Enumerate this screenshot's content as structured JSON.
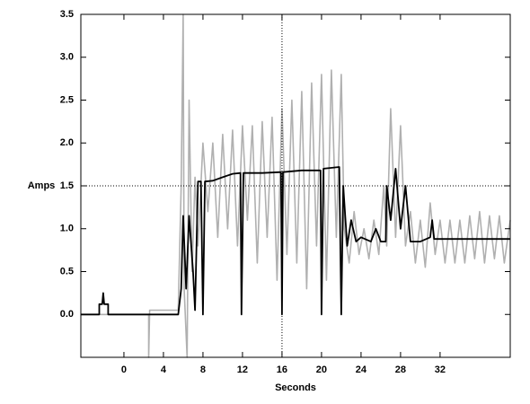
{
  "chart_data": {
    "type": "line",
    "xlabel": "Seconds",
    "ylabel": "Amps",
    "xlim": [
      -4.36,
      39.1
    ],
    "ylim": [
      -0.5,
      3.5
    ],
    "xticks": [
      0,
      4,
      8,
      12,
      16,
      20,
      24,
      28,
      32
    ],
    "yticks": [
      {
        "value": 0,
        "label": "0.0"
      },
      0.5,
      {
        "value": 1,
        "label": "1.0"
      },
      1.5,
      {
        "value": 2,
        "label": "2.0"
      },
      2.5,
      {
        "value": 3,
        "label": "3.0"
      },
      3.5
    ],
    "crosshair": {
      "x": 16,
      "y": 1.5
    },
    "series": [
      {
        "color": "#b0b0b0",
        "x": [
          -4.36,
          2.5,
          2.5,
          2.6,
          5.5,
          5.8,
          6.0,
          6.1,
          6.4,
          6.6,
          6.9,
          7.2,
          7.5,
          8,
          8.5,
          9,
          9.5,
          10,
          10.5,
          11,
          11.5,
          12,
          12.5,
          13,
          13.5,
          14,
          14.5,
          15,
          15.5,
          16,
          16.5,
          17,
          17.5,
          18,
          18.5,
          19,
          19.5,
          20,
          20.5,
          21,
          21.5,
          22,
          22.3,
          22.8,
          23.3,
          23.8,
          24.3,
          24.8,
          25.3,
          25.8,
          26.3,
          26.6,
          27,
          27.5,
          28,
          28.5,
          29,
          29.5,
          30,
          30.5,
          31,
          31.5,
          32,
          32.5,
          33,
          33.5,
          34,
          34.5,
          35,
          35.5,
          36,
          36.5,
          37,
          37.5,
          38,
          38.5,
          39.1
        ],
        "values": [
          0,
          0,
          -0.5,
          0.05,
          0.05,
          1.5,
          3.5,
          0.3,
          -0.5,
          2.5,
          0.5,
          1.6,
          0.8,
          2.0,
          1.2,
          2.0,
          0.9,
          2.1,
          1.0,
          2.15,
          0.8,
          2.2,
          1.1,
          2.2,
          0.6,
          2.25,
          0.9,
          2.3,
          0.4,
          2.4,
          0.7,
          2.5,
          0.6,
          2.6,
          0.3,
          2.7,
          0.8,
          2.8,
          0.4,
          2.85,
          0.9,
          2.8,
          1.0,
          0.6,
          1.2,
          0.7,
          1.0,
          0.65,
          1.1,
          0.7,
          1.5,
          0.8,
          2.4,
          0.9,
          2.2,
          0.8,
          1.2,
          0.6,
          1.1,
          0.55,
          1.3,
          0.7,
          1.1,
          0.6,
          1.1,
          0.6,
          1.1,
          0.6,
          1.15,
          0.65,
          1.2,
          0.6,
          1.15,
          0.65,
          1.15,
          0.6,
          1.1
        ]
      },
      {
        "color": "#000000",
        "x": [
          -4.36,
          -2.5,
          -2.5,
          -2.2,
          -2.1,
          -2.0,
          -1.6,
          -1.6,
          5.5,
          5.8,
          6.0,
          6.3,
          6.6,
          7.0,
          7.2,
          7.5,
          7.8,
          8.0,
          8.2,
          9,
          10,
          11,
          11.8,
          11.9,
          12.1,
          14,
          15.9,
          16.0,
          16.1,
          18,
          19.9,
          20.0,
          20.2,
          21.8,
          22.0,
          22.2,
          22.6,
          23,
          23.5,
          24,
          25,
          25.5,
          26,
          26.5,
          26.6,
          27,
          27.5,
          28,
          28.5,
          29,
          30,
          31,
          31.2,
          31.4,
          35,
          39.1
        ],
        "values": [
          0,
          0,
          0.12,
          0.12,
          0.25,
          0.12,
          0.12,
          0,
          0,
          0.3,
          1.15,
          0.3,
          1.15,
          0.5,
          0.05,
          1.55,
          1.55,
          0,
          1.55,
          1.56,
          1.6,
          1.64,
          1.65,
          0,
          1.65,
          1.65,
          1.66,
          0,
          1.66,
          1.68,
          1.68,
          0,
          1.7,
          1.72,
          0,
          1.5,
          0.8,
          1.1,
          0.85,
          0.9,
          0.85,
          1.0,
          0.85,
          0.85,
          1.5,
          1.1,
          1.7,
          1.0,
          1.5,
          0.85,
          0.85,
          0.9,
          1.1,
          0.88,
          0.88,
          0.88
        ]
      }
    ]
  }
}
